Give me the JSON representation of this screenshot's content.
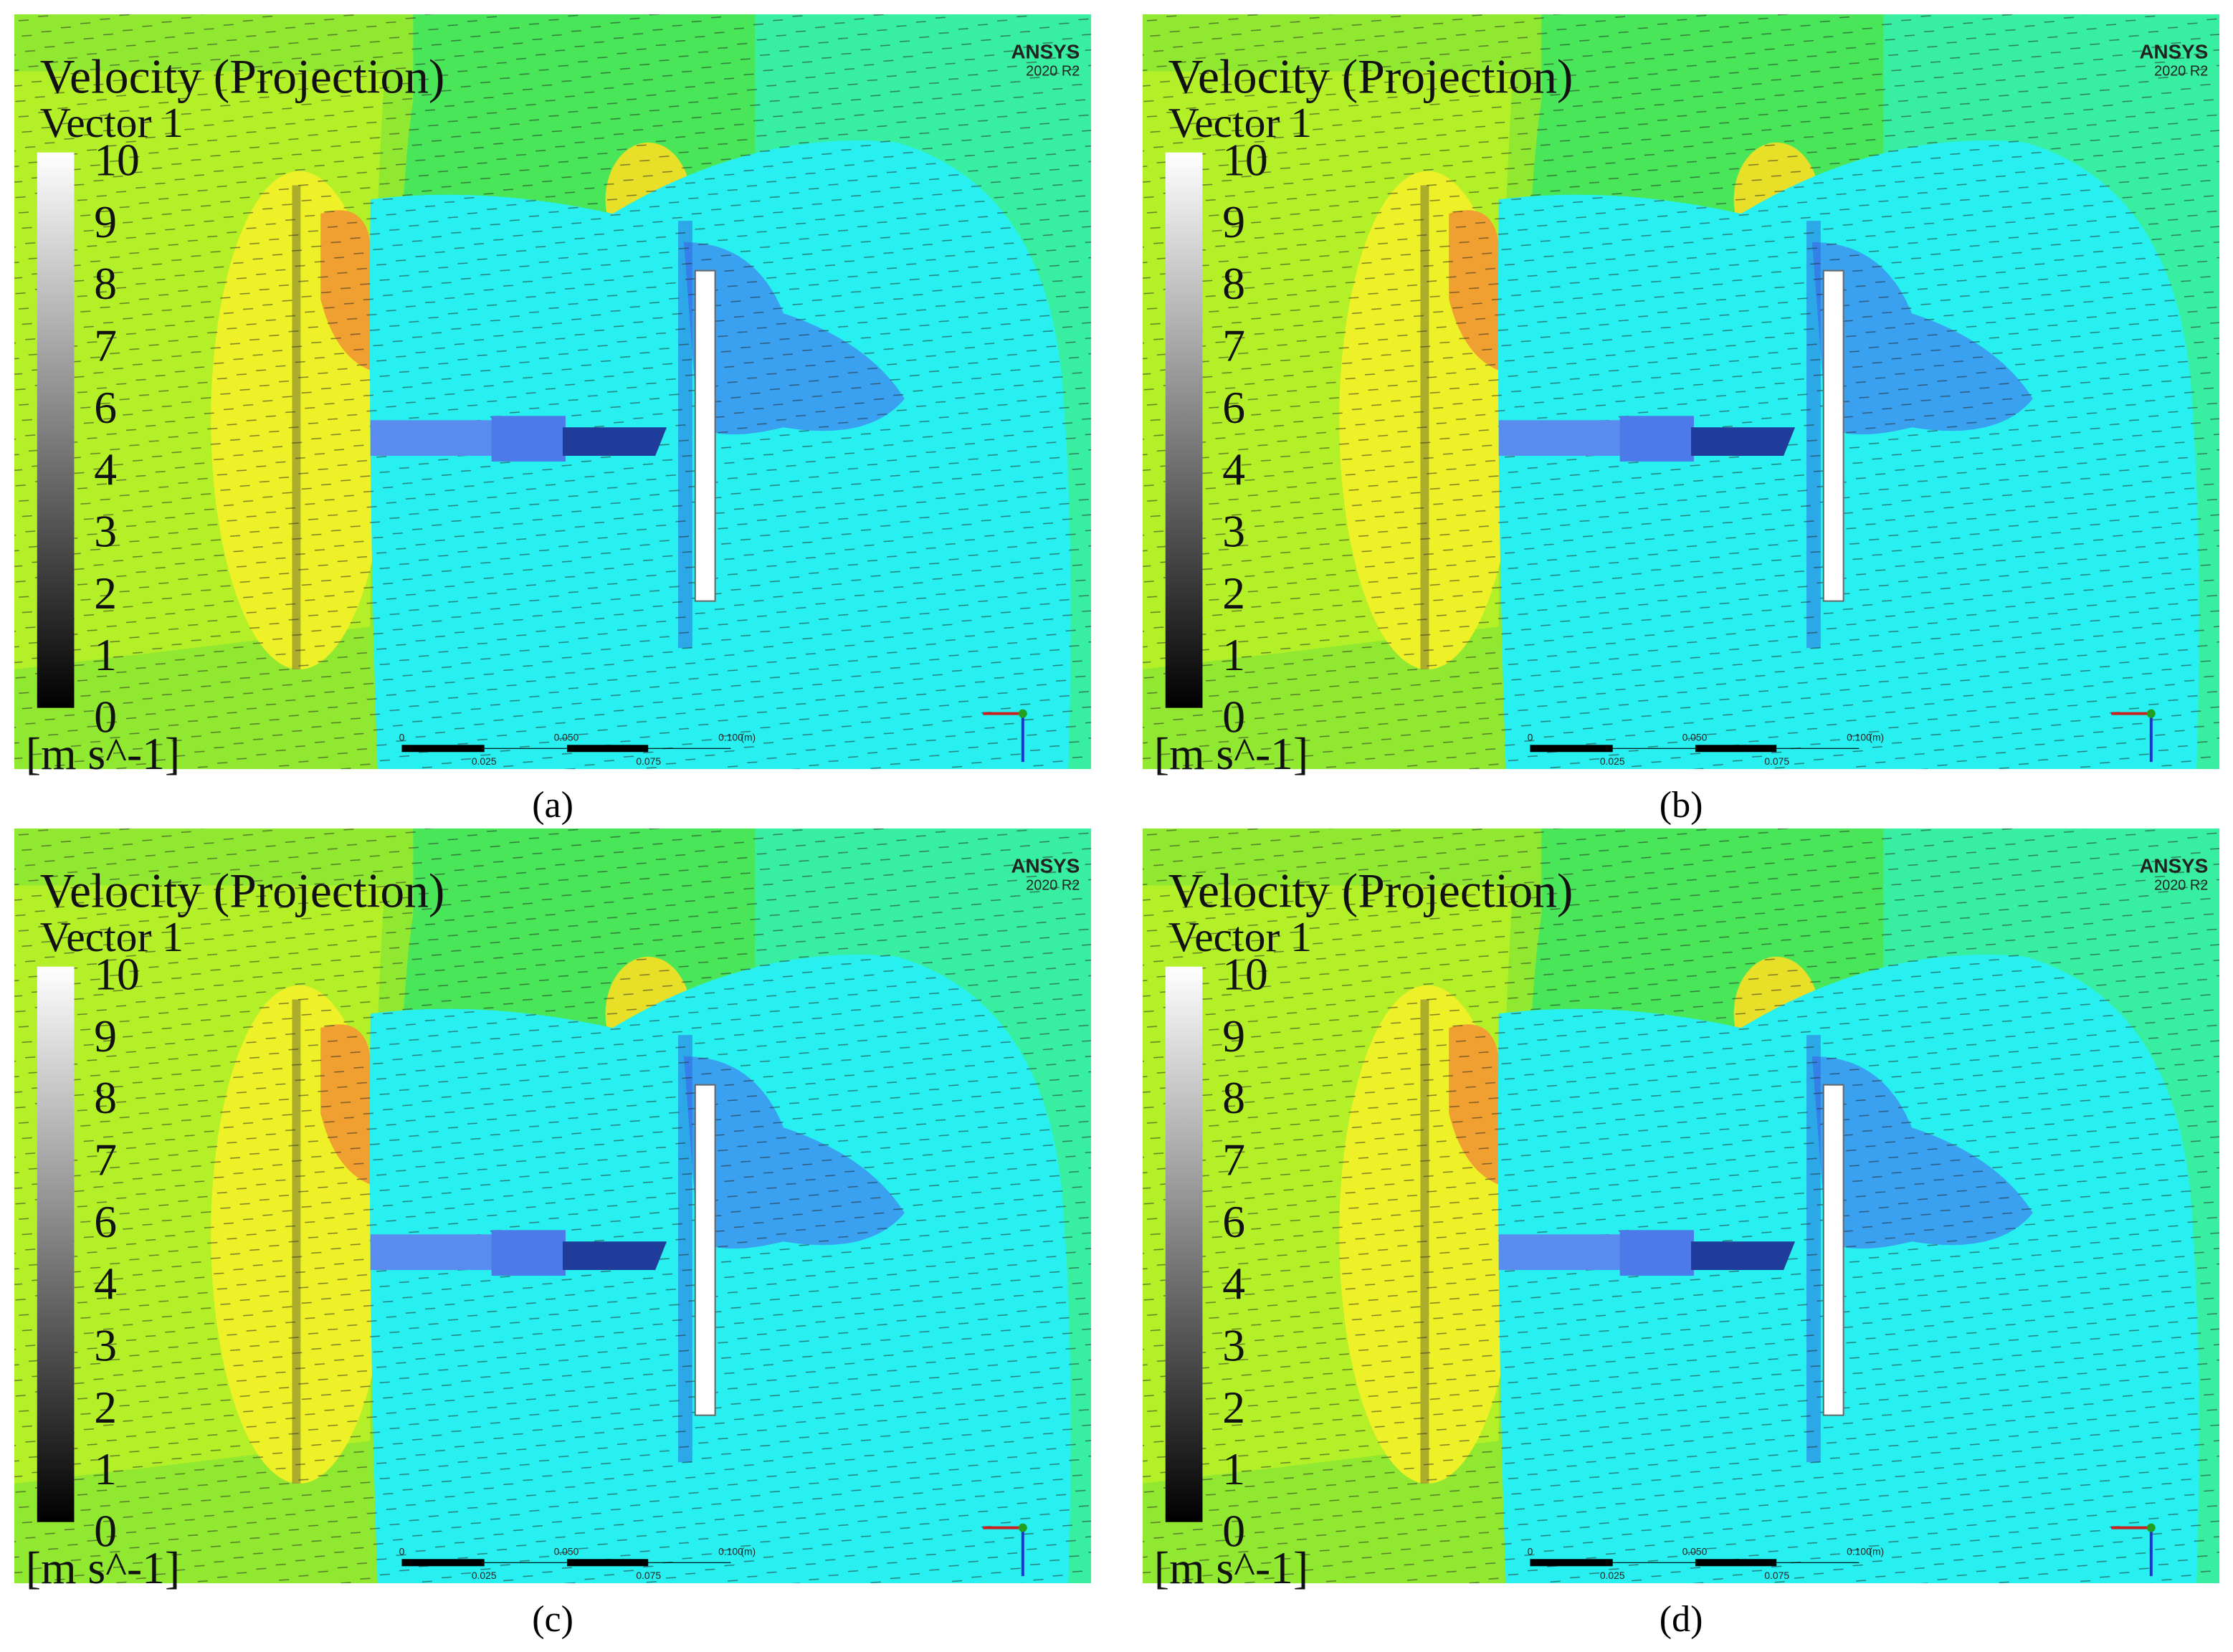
{
  "panels": [
    {
      "title": "Velocity (Projection)",
      "subtitle": "Vector 1",
      "colorbar": {
        "labels": [
          "10",
          "9",
          "8",
          "7",
          "6",
          "4",
          "3",
          "2",
          "1",
          "0"
        ],
        "unit": "[m s^-1]"
      },
      "brand": "ANSYS",
      "version": "2020 R2",
      "scale_bar": {
        "labels": [
          "0",
          "0.025",
          "0.050",
          "0.075",
          "0.100"
        ],
        "unit": "(m)"
      },
      "caption": "(a)"
    },
    {
      "title": "Velocity (Projection)",
      "subtitle": "Vector 1",
      "colorbar": {
        "labels": [
          "10",
          "9",
          "8",
          "7",
          "6",
          "4",
          "3",
          "2",
          "1",
          "0"
        ],
        "unit": "[m s^-1]"
      },
      "brand": "ANSYS",
      "version": "2020 R2",
      "scale_bar": {
        "labels": [
          "0",
          "0.025",
          "0.050",
          "0.075",
          "0.100"
        ],
        "unit": "(m)"
      },
      "caption": "(b)"
    },
    {
      "title": "Velocity (Projection)",
      "subtitle": "Vector 1",
      "colorbar": {
        "labels": [
          "10",
          "9",
          "8",
          "7",
          "6",
          "4",
          "3",
          "2",
          "1",
          "0"
        ],
        "unit": "[m s^-1]"
      },
      "brand": "ANSYS",
      "version": "2020 R2",
      "scale_bar": {
        "labels": [
          "0",
          "0.025",
          "0.050",
          "0.075",
          "0.100"
        ],
        "unit": "(m)"
      },
      "caption": "(c)"
    },
    {
      "title": "Velocity (Projection)",
      "subtitle": "Vector 1",
      "colorbar": {
        "labels": [
          "10",
          "9",
          "8",
          "7",
          "6",
          "4",
          "3",
          "2",
          "1",
          "0"
        ],
        "unit": "[m s^-1]"
      },
      "brand": "ANSYS",
      "version": "2020 R2",
      "scale_bar": {
        "labels": [
          "0",
          "0.025",
          "0.050",
          "0.075",
          "0.100"
        ],
        "unit": "(m)"
      },
      "caption": "(d)"
    }
  ]
}
